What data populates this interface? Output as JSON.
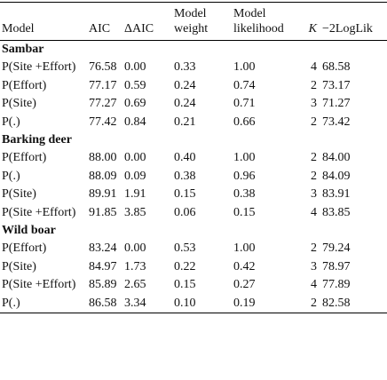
{
  "table": {
    "columns": [
      "Model",
      "AIC",
      "ΔAIC",
      "Model weight",
      "Model likelihood",
      "K",
      "−2LogLik"
    ],
    "groups": [
      {
        "name": "Sambar",
        "rows": [
          [
            "P(Site +Effort)",
            "76.58",
            "0.00",
            "0.33",
            "1.00",
            "4",
            "68.58"
          ],
          [
            "P(Effort)",
            "77.17",
            "0.59",
            "0.24",
            "0.74",
            "2",
            "73.17"
          ],
          [
            "P(Site)",
            "77.27",
            "0.69",
            "0.24",
            "0.71",
            "3",
            "71.27"
          ],
          [
            "P(.)",
            "77.42",
            "0.84",
            "0.21",
            "0.66",
            "2",
            "73.42"
          ]
        ]
      },
      {
        "name": "Barking deer",
        "rows": [
          [
            "P(Effort)",
            "88.00",
            "0.00",
            "0.40",
            "1.00",
            "2",
            "84.00"
          ],
          [
            "P(.)",
            "88.09",
            "0.09",
            "0.38",
            "0.96",
            "2",
            "84.09"
          ],
          [
            "P(Site)",
            "89.91",
            "1.91",
            "0.15",
            "0.38",
            "3",
            "83.91"
          ],
          [
            "P(Site +Effort)",
            "91.85",
            "3.85",
            "0.06",
            "0.15",
            "4",
            "83.85"
          ]
        ]
      },
      {
        "name": "Wild boar",
        "rows": [
          [
            "P(Effort)",
            "83.24",
            "0.00",
            "0.53",
            "1.00",
            "2",
            "79.24"
          ],
          [
            "P(Site)",
            "84.97",
            "1.73",
            "0.22",
            "0.42",
            "3",
            "78.97"
          ],
          [
            "P(Site +Effort)",
            "85.89",
            "2.65",
            "0.15",
            "0.27",
            "4",
            "77.89"
          ],
          [
            "P(.)",
            "86.58",
            "3.34",
            "0.10",
            "0.19",
            "2",
            "82.58"
          ]
        ]
      }
    ]
  }
}
